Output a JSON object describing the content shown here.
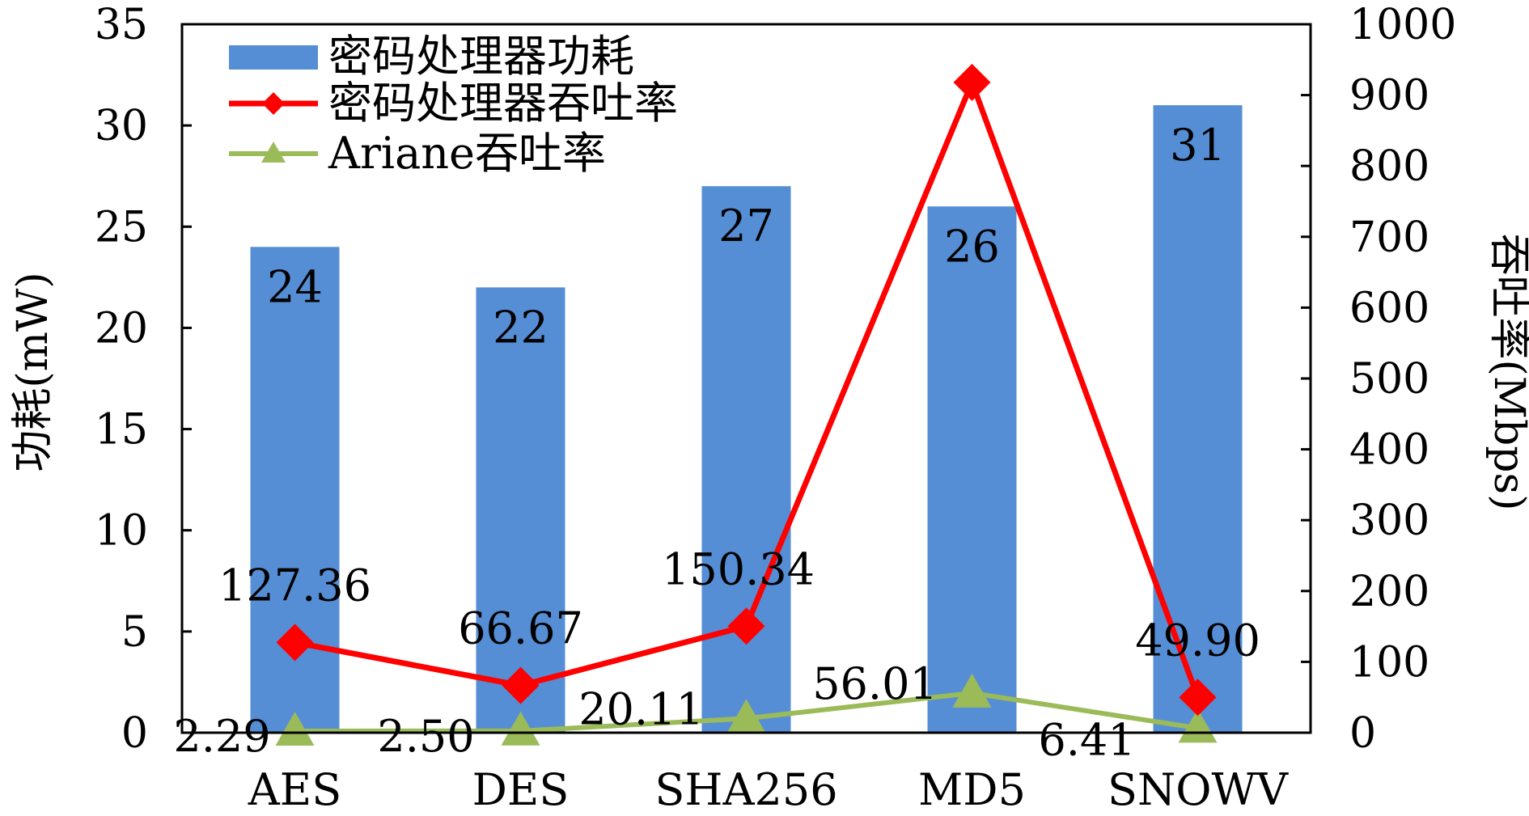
{
  "chart_data": {
    "type": "bar",
    "categories": [
      "AES",
      "DES",
      "SHA256",
      "MD5",
      "SNOWV"
    ],
    "series": [
      {
        "name": "密码处理器功耗",
        "type": "bar",
        "axis": "left",
        "color": "#558ed5",
        "values": [
          24,
          22,
          27,
          26,
          31
        ],
        "labels": [
          "24",
          "22",
          "27",
          "26",
          "31"
        ]
      },
      {
        "name": "密码处理器吞吐率",
        "type": "line",
        "axis": "right",
        "color": "#ff0000",
        "marker": "diamond",
        "values": [
          127.36,
          66.67,
          150.34,
          918,
          49.9
        ],
        "labels": [
          "127.36",
          "66.67",
          "150.34",
          "",
          "49.90"
        ]
      },
      {
        "name": "Ariane吞吐率",
        "type": "line",
        "axis": "right",
        "color": "#9bbb59",
        "marker": "triangle",
        "values": [
          2.29,
          2.5,
          20.11,
          56.01,
          6.41
        ],
        "labels": [
          "2.29",
          "2.50",
          "20.11",
          "56.01",
          "6.41"
        ]
      }
    ],
    "ylabel": "功耗(mW)",
    "y2label": "吞吐率(Mbps)",
    "ylim": [
      0,
      35
    ],
    "y2lim": [
      0,
      1000
    ],
    "yticks": [
      "0",
      "5",
      "10",
      "15",
      "20",
      "25",
      "30",
      "35"
    ],
    "y2ticks": [
      "0",
      "100",
      "200",
      "300",
      "400",
      "500",
      "600",
      "700",
      "800",
      "900",
      "1000"
    ],
    "legend_position": "top-left",
    "grid": false
  }
}
